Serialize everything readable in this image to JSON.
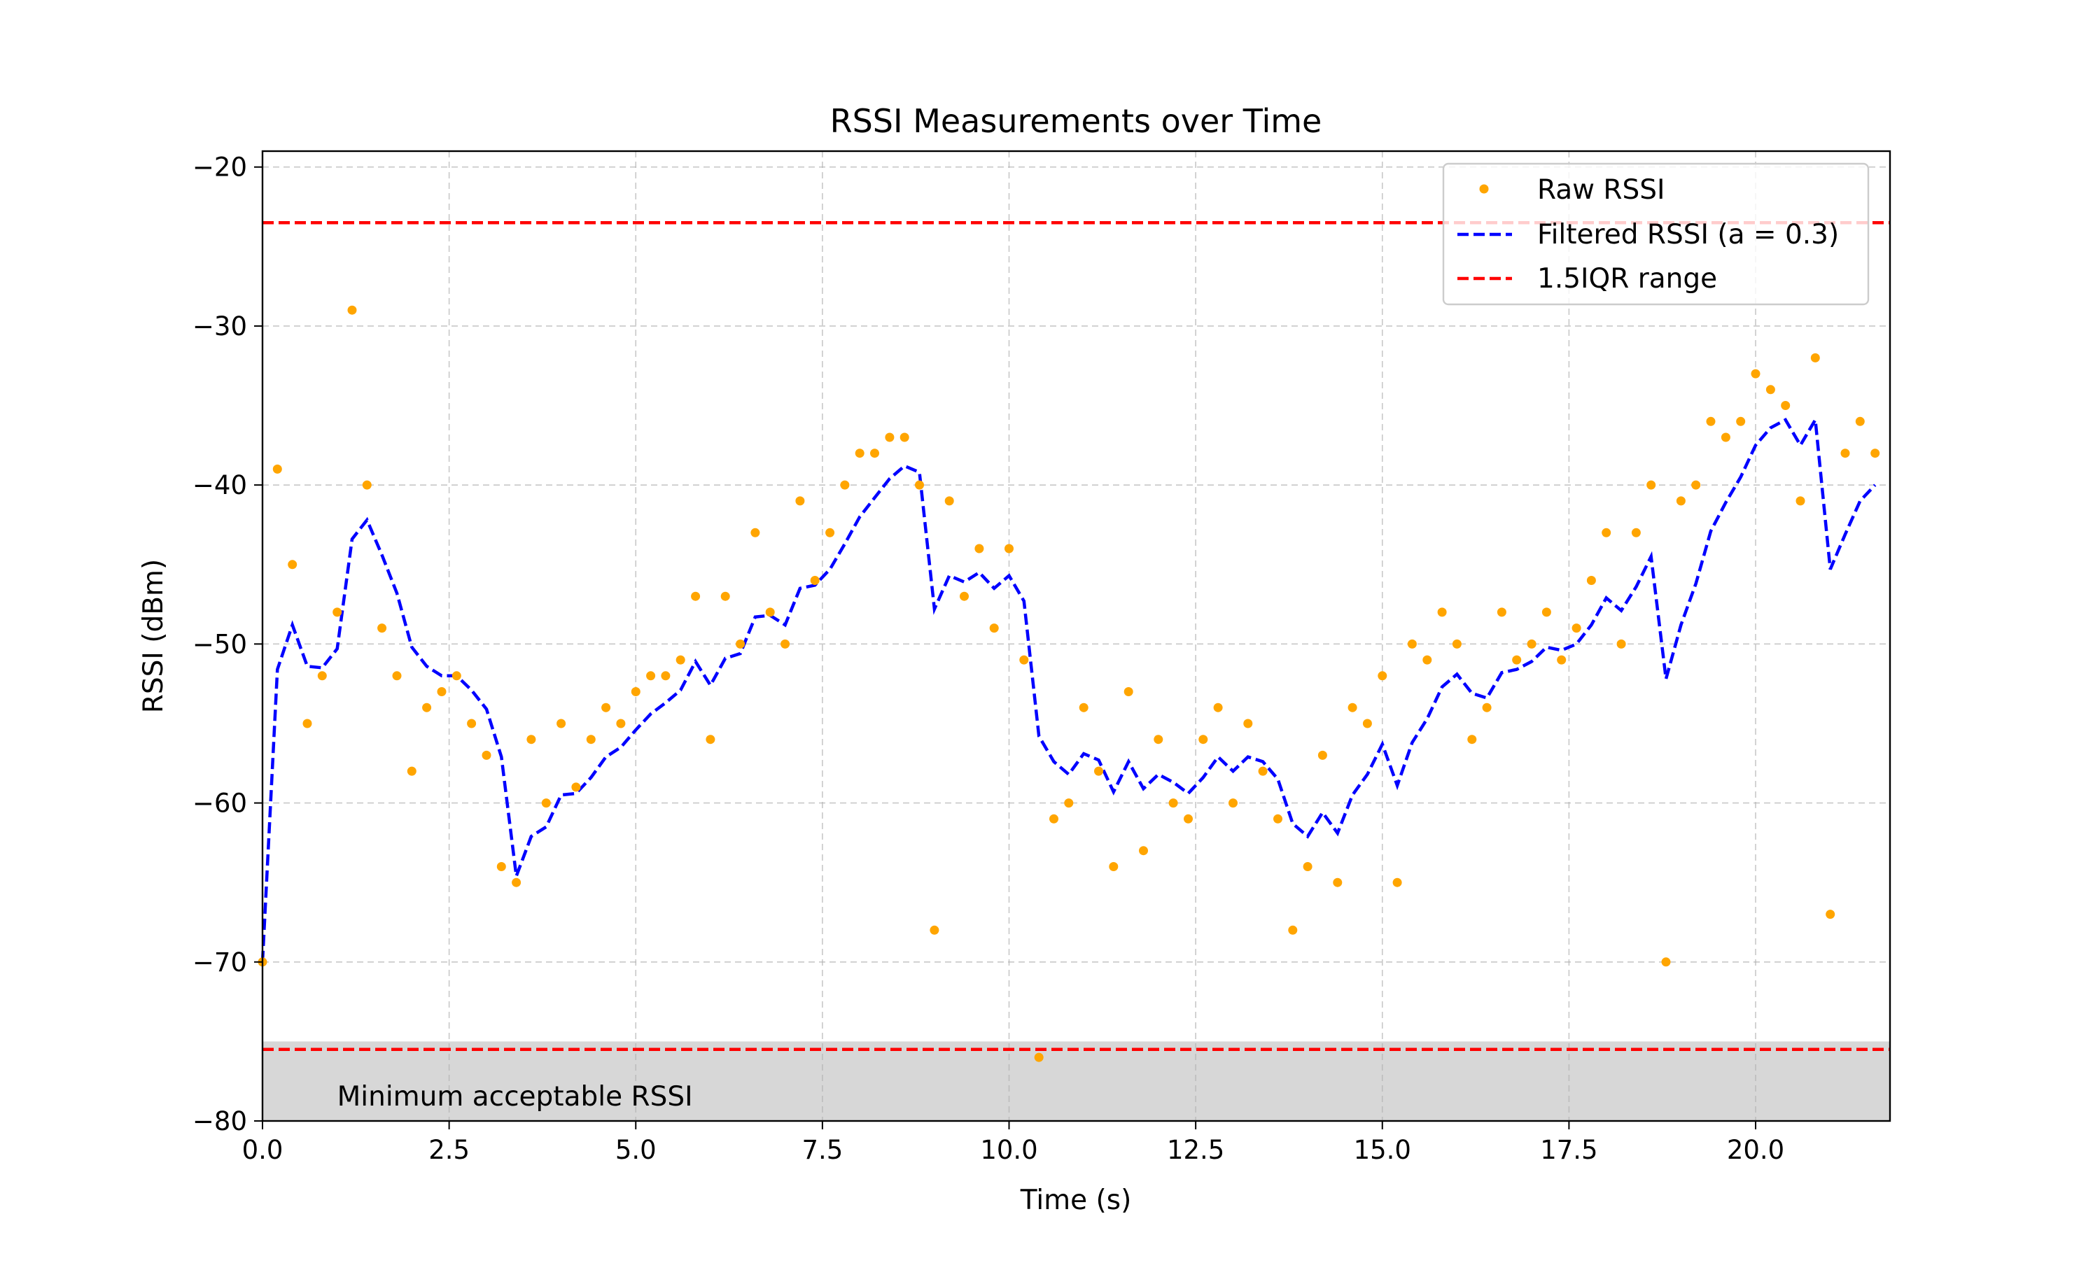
{
  "chart_data": {
    "type": "scatter",
    "title": "RSSI Measurements over Time",
    "xlabel": "Time (s)",
    "ylabel": "RSSI (dBm)",
    "xlim": [
      0.0,
      21.8
    ],
    "ylim": [
      -80,
      -19
    ],
    "grid": true,
    "legend_position": "top-right",
    "x_ticks": [
      0.0,
      2.5,
      5.0,
      7.5,
      10.0,
      12.5,
      15.0,
      17.5,
      20.0
    ],
    "x_tick_labels": [
      "0.0",
      "2.5",
      "5.0",
      "7.5",
      "10.0",
      "12.5",
      "15.0",
      "17.5",
      "20.0"
    ],
    "y_ticks": [
      -80,
      -70,
      -60,
      -50,
      -40,
      -30,
      -20
    ],
    "y_tick_labels": [
      "−80",
      "−70",
      "−60",
      "−50",
      "−40",
      "−30",
      "−20"
    ],
    "series": [
      {
        "name": "Raw RSSI",
        "kind": "scatter",
        "color": "#ffa500",
        "x": [
          0.0,
          0.2,
          0.4,
          0.6,
          0.8,
          1.0,
          1.2,
          1.4,
          1.6,
          1.8,
          2.0,
          2.2,
          2.4,
          2.6,
          2.8,
          3.0,
          3.2,
          3.4,
          3.6,
          3.8,
          4.0,
          4.2,
          4.4,
          4.6,
          4.8,
          5.0,
          5.2,
          5.4,
          5.6,
          5.8,
          6.0,
          6.2,
          6.4,
          6.6,
          6.8,
          7.0,
          7.2,
          7.4,
          7.6,
          7.8,
          8.0,
          8.2,
          8.4,
          8.6,
          8.8,
          9.0,
          9.2,
          9.4,
          9.6,
          9.8,
          10.0,
          10.2,
          10.4,
          10.6,
          10.8,
          11.0,
          11.2,
          11.4,
          11.6,
          11.8,
          12.0,
          12.2,
          12.4,
          12.6,
          12.8,
          13.0,
          13.2,
          13.4,
          13.6,
          13.8,
          14.0,
          14.2,
          14.4,
          14.6,
          14.8,
          15.0,
          15.2,
          15.4,
          15.6,
          15.8,
          16.0,
          16.2,
          16.4,
          16.6,
          16.8,
          17.0,
          17.2,
          17.4,
          17.6,
          17.8,
          18.0,
          18.2,
          18.4,
          18.6,
          18.8,
          19.0,
          19.2,
          19.4,
          19.6,
          19.8,
          20.0,
          20.2,
          20.4,
          20.6,
          20.8,
          21.0,
          21.2,
          21.4,
          21.6
        ],
        "y": [
          -70,
          -39,
          -45,
          -55,
          -52,
          -48,
          -29,
          -40,
          -49,
          -52,
          -58,
          -54,
          -53,
          -52,
          -55,
          -57,
          -64,
          -65,
          -56,
          -60,
          -55,
          -59,
          -56,
          -54,
          -55,
          -53,
          -52,
          -52,
          -51,
          -47,
          -56,
          -47,
          -50,
          -43,
          -48,
          -50,
          -41,
          -46,
          -43,
          -40,
          -38,
          -38,
          -37,
          -37,
          -40,
          -68,
          -41,
          -47,
          -44,
          -49,
          -44,
          -51,
          -76,
          -61,
          -60,
          -54,
          -58,
          -64,
          -53,
          -63,
          -56,
          -60,
          -61,
          -56,
          -54,
          -60,
          -55,
          -58,
          -61,
          -68,
          -64,
          -57,
          -65,
          -54,
          -55,
          -52,
          -65,
          -50,
          -51,
          -48,
          -50,
          -56,
          -54,
          -48,
          -51,
          -50,
          -48,
          -51,
          -49,
          -46,
          -43,
          -50,
          -43,
          -40,
          -70,
          -41,
          -40,
          -36,
          -37,
          -36,
          -33,
          -34,
          -35,
          -41,
          -32,
          -67,
          -38,
          -36,
          -38
        ]
      },
      {
        "name": "Filtered RSSI (a = 0.3)",
        "kind": "line",
        "color": "#0000ff",
        "dash": "dashed",
        "x": [
          0.0,
          0.2,
          0.4,
          0.6,
          0.8,
          1.0,
          1.2,
          1.4,
          1.6,
          1.8,
          2.0,
          2.2,
          2.4,
          2.6,
          2.8,
          3.0,
          3.2,
          3.4,
          3.6,
          3.8,
          4.0,
          4.2,
          4.4,
          4.6,
          4.8,
          5.0,
          5.2,
          5.4,
          5.6,
          5.8,
          6.0,
          6.2,
          6.4,
          6.6,
          6.8,
          7.0,
          7.2,
          7.4,
          7.6,
          7.8,
          8.0,
          8.2,
          8.4,
          8.6,
          8.8,
          9.0,
          9.2,
          9.4,
          9.6,
          9.8,
          10.0,
          10.2,
          10.4,
          10.6,
          10.8,
          11.0,
          11.2,
          11.4,
          11.6,
          11.8,
          12.0,
          12.2,
          12.4,
          12.6,
          12.8,
          13.0,
          13.2,
          13.4,
          13.6,
          13.8,
          14.0,
          14.2,
          14.4,
          14.6,
          14.8,
          15.0,
          15.2,
          15.4,
          15.6,
          15.8,
          16.0,
          16.2,
          16.4,
          16.6,
          16.8,
          17.0,
          17.2,
          17.4,
          17.6,
          17.8,
          18.0,
          18.2,
          18.4,
          18.6,
          18.8,
          19.0,
          19.2,
          19.4,
          19.6,
          19.8,
          20.0,
          20.2,
          20.4,
          20.6,
          20.8,
          21.0,
          21.2,
          21.4,
          21.6
        ],
        "y": [
          -70,
          -51.6,
          -48.8,
          -51.4,
          -51.5,
          -50.3,
          -43.4,
          -42.2,
          -44.4,
          -46.8,
          -50.2,
          -51.4,
          -52.0,
          -52.0,
          -52.9,
          -54.1,
          -57.1,
          -64.6,
          -62.1,
          -61.5,
          -59.5,
          -59.4,
          -58.4,
          -57.1,
          -56.5,
          -55.4,
          -54.4,
          -53.7,
          -52.9,
          -51.1,
          -52.6,
          -50.9,
          -50.6,
          -48.3,
          -48.2,
          -48.8,
          -46.5,
          -46.3,
          -45.3,
          -43.7,
          -42.0,
          -40.8,
          -39.6,
          -38.8,
          -39.2,
          -47.8,
          -45.7,
          -46.1,
          -45.5,
          -46.5,
          -45.7,
          -47.3,
          -55.8,
          -57.4,
          -58.2,
          -56.9,
          -57.3,
          -59.3,
          -57.4,
          -59.1,
          -58.2,
          -58.7,
          -59.4,
          -58.4,
          -57.1,
          -58.0,
          -57.1,
          -57.4,
          -58.5,
          -61.3,
          -62.1,
          -60.6,
          -61.9,
          -59.5,
          -58.2,
          -56.3,
          -58.9,
          -56.2,
          -54.7,
          -52.7,
          -51.9,
          -53.1,
          -53.4,
          -51.8,
          -51.6,
          -51.1,
          -50.2,
          -50.4,
          -50.0,
          -48.8,
          -47.1,
          -47.9,
          -46.4,
          -44.5,
          -52.2,
          -48.8,
          -46.2,
          -42.9,
          -41.1,
          -39.5,
          -37.5,
          -36.4,
          -35.9,
          -37.5,
          -35.9,
          -45.3,
          -43.1,
          -41.0,
          -40.0
        ]
      },
      {
        "name": "1.5IQR range",
        "kind": "hline",
        "color": "#ff0000",
        "dash": "dashed",
        "values": [
          -23.5,
          -75.5
        ]
      }
    ],
    "shaded_region": {
      "y_from": -80,
      "y_to": -75,
      "color": "#d3d3d3",
      "label": "Minimum acceptable RSSI",
      "label_x": 1.0,
      "label_y": -78.5
    }
  }
}
